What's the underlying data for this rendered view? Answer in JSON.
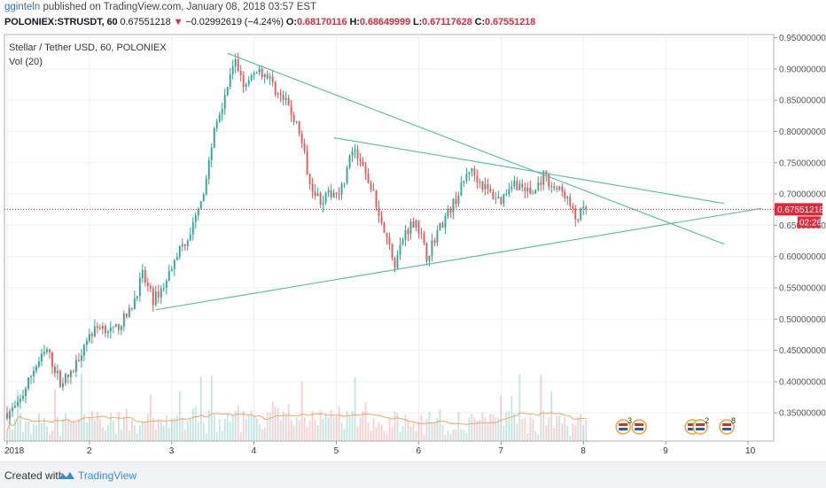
{
  "publisher": {
    "user": "gginteln",
    "text": " published on TradingView.com, January 08, 2018 03:57 EST"
  },
  "quote": {
    "symbol": "POLONIEX:STRUSDT, 60",
    "last": "0.67551218",
    "change": "−0.02992619 (−4.24%)",
    "o_label": "O:",
    "o": "0.68170116",
    "h_label": "H:",
    "h": "0.68649999",
    "l_label": "L:",
    "l": "0.67117628",
    "c_label": "C:",
    "c": "0.67551218"
  },
  "footer": {
    "created": "Created with",
    "brand": "TradingView"
  },
  "colors": {
    "up": "#26a69a",
    "down": "#ef5350",
    "trend": "#5bbfa0",
    "vol_ma": "#f4a460",
    "last_price": "#e0283a",
    "axis": "#555555"
  },
  "chart_data": {
    "type": "candlestick",
    "title": "Stellar / Tether USD, 60, POLONIEX",
    "study": "Vol (20)",
    "y_ticks": [
      "0.95000000",
      "0.90000000",
      "0.85000000",
      "0.80000000",
      "0.75000000",
      "0.70000000",
      "0.65000000",
      "0.60000000",
      "0.55000000",
      "0.50000000",
      "0.45000000",
      "0.40000000",
      "0.35000000"
    ],
    "ylim": [
      0.305,
      0.955
    ],
    "x_ticks": [
      "2018",
      "2",
      "3",
      "4",
      "5",
      "6",
      "7",
      "8",
      "9",
      "10"
    ],
    "last_price_label": "0.67551218",
    "countdown_label": "02:26",
    "anchors": [
      [
        0,
        0.35
      ],
      [
        4,
        0.36
      ],
      [
        10,
        0.42
      ],
      [
        15,
        0.45
      ],
      [
        20,
        0.4
      ],
      [
        24,
        0.41
      ],
      [
        30,
        0.47
      ],
      [
        35,
        0.49
      ],
      [
        40,
        0.48
      ],
      [
        46,
        0.51
      ],
      [
        51,
        0.57
      ],
      [
        55,
        0.53
      ],
      [
        60,
        0.56
      ],
      [
        63,
        0.6
      ],
      [
        68,
        0.63
      ],
      [
        73,
        0.68
      ],
      [
        78,
        0.8
      ],
      [
        82,
        0.86
      ],
      [
        86,
        0.91
      ],
      [
        90,
        0.87
      ],
      [
        94,
        0.9
      ],
      [
        98,
        0.89
      ],
      [
        102,
        0.86
      ],
      [
        106,
        0.84
      ],
      [
        110,
        0.8
      ],
      [
        114,
        0.72
      ],
      [
        118,
        0.69
      ],
      [
        122,
        0.7
      ],
      [
        126,
        0.71
      ],
      [
        130,
        0.77
      ],
      [
        134,
        0.74
      ],
      [
        138,
        0.7
      ],
      [
        142,
        0.64
      ],
      [
        146,
        0.59
      ],
      [
        150,
        0.64
      ],
      [
        154,
        0.66
      ],
      [
        158,
        0.6
      ],
      [
        162,
        0.64
      ],
      [
        166,
        0.67
      ],
      [
        170,
        0.7
      ],
      [
        174,
        0.74
      ],
      [
        178,
        0.72
      ],
      [
        182,
        0.7
      ],
      [
        186,
        0.69
      ],
      [
        190,
        0.72
      ],
      [
        194,
        0.71
      ],
      [
        198,
        0.7
      ],
      [
        202,
        0.73
      ],
      [
        206,
        0.71
      ],
      [
        210,
        0.7
      ],
      [
        214,
        0.66
      ],
      [
        218,
        0.676
      ]
    ],
    "candle_count": 219,
    "x_range_candles": [
      0,
      285
    ],
    "trendlines": [
      {
        "name": "upper resistance",
        "from": [
          83,
          0.925
        ],
        "to": [
          270,
          0.62
        ]
      },
      {
        "name": "inner resistance",
        "from": [
          123,
          0.79
        ],
        "to": [
          270,
          0.685
        ]
      },
      {
        "name": "support",
        "from": [
          56,
          0.515
        ],
        "to": [
          284,
          0.677
        ]
      }
    ],
    "events": [
      {
        "pos": 232,
        "count": "3"
      },
      {
        "pos": 238,
        "count": ""
      },
      {
        "pos": 258,
        "count": ""
      },
      {
        "pos": 261,
        "count": "2"
      },
      {
        "pos": 271,
        "count": "8"
      }
    ]
  }
}
